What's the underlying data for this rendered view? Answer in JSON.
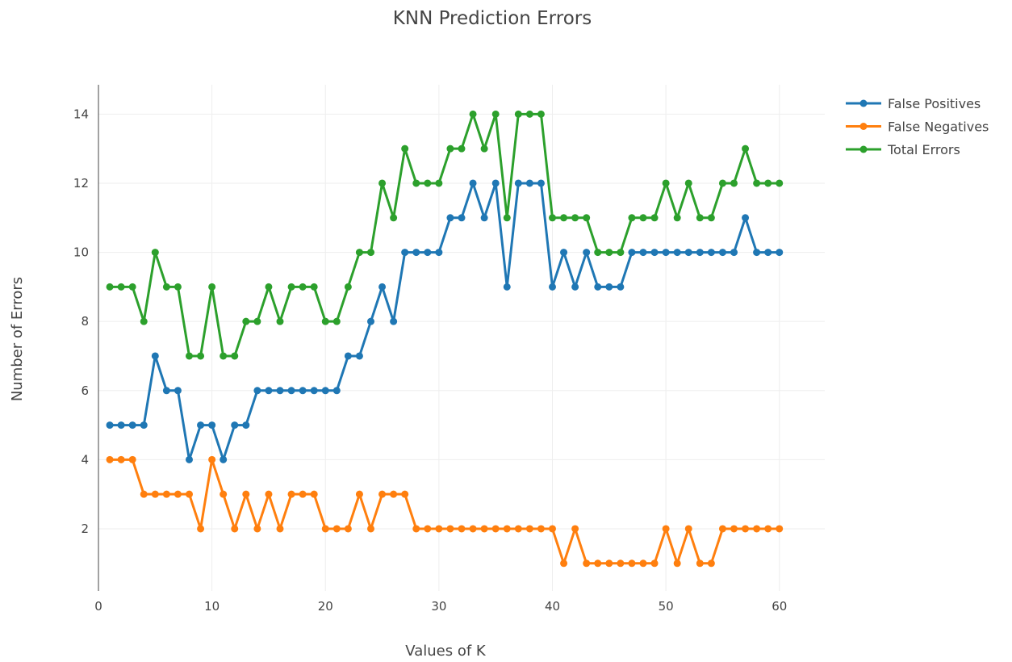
{
  "chart_data": {
    "type": "line",
    "title": "KNN Prediction Errors",
    "xlabel": "Values of K",
    "ylabel": "Number of Errors",
    "xlim": [
      0,
      64
    ],
    "ylim": [
      0.2,
      14.85
    ],
    "xticks": [
      0,
      10,
      20,
      30,
      40,
      50,
      60
    ],
    "yticks": [
      2,
      4,
      6,
      8,
      10,
      12,
      14
    ],
    "grid": true,
    "legend_position": "top-right",
    "x": [
      1,
      2,
      3,
      4,
      5,
      6,
      7,
      8,
      9,
      10,
      11,
      12,
      13,
      14,
      15,
      16,
      17,
      18,
      19,
      20,
      21,
      22,
      23,
      24,
      25,
      26,
      27,
      28,
      29,
      30,
      31,
      32,
      33,
      34,
      35,
      36,
      37,
      38,
      39,
      40,
      41,
      42,
      43,
      44,
      45,
      46,
      47,
      48,
      49,
      50,
      51,
      52,
      53,
      54,
      55,
      56,
      57,
      58,
      59,
      60
    ],
    "series": [
      {
        "name": "False Positives",
        "color": "#1f77b4",
        "values": [
          5,
          5,
          5,
          5,
          7,
          6,
          6,
          4,
          5,
          5,
          4,
          5,
          5,
          6,
          6,
          6,
          6,
          6,
          6,
          6,
          6,
          7,
          7,
          8,
          9,
          8,
          10,
          10,
          10,
          10,
          11,
          11,
          12,
          11,
          12,
          9,
          12,
          12,
          12,
          9,
          10,
          9,
          10,
          9,
          9,
          9,
          10,
          10,
          10,
          10,
          10,
          10,
          10,
          10,
          10,
          10,
          11,
          10,
          10,
          10
        ]
      },
      {
        "name": "False Negatives",
        "color": "#ff7f0e",
        "values": [
          4,
          4,
          4,
          3,
          3,
          3,
          3,
          3,
          2,
          4,
          3,
          2,
          3,
          2,
          3,
          2,
          3,
          3,
          3,
          2,
          2,
          2,
          3,
          2,
          3,
          3,
          3,
          2,
          2,
          2,
          2,
          2,
          2,
          2,
          2,
          2,
          2,
          2,
          2,
          2,
          1,
          2,
          1,
          1,
          1,
          1,
          1,
          1,
          1,
          2,
          1,
          2,
          1,
          1,
          2,
          2,
          2,
          2,
          2,
          2
        ]
      },
      {
        "name": "Total Errors",
        "color": "#2ca02c",
        "values": [
          9,
          9,
          9,
          8,
          10,
          9,
          9,
          7,
          7,
          9,
          7,
          7,
          8,
          8,
          9,
          8,
          9,
          9,
          9,
          8,
          8,
          9,
          10,
          10,
          12,
          11,
          13,
          12,
          12,
          12,
          13,
          13,
          14,
          13,
          14,
          11,
          14,
          14,
          14,
          11,
          11,
          11,
          11,
          10,
          10,
          10,
          11,
          11,
          11,
          12,
          11,
          12,
          11,
          11,
          12,
          12,
          13,
          12,
          12,
          12
        ]
      }
    ]
  }
}
